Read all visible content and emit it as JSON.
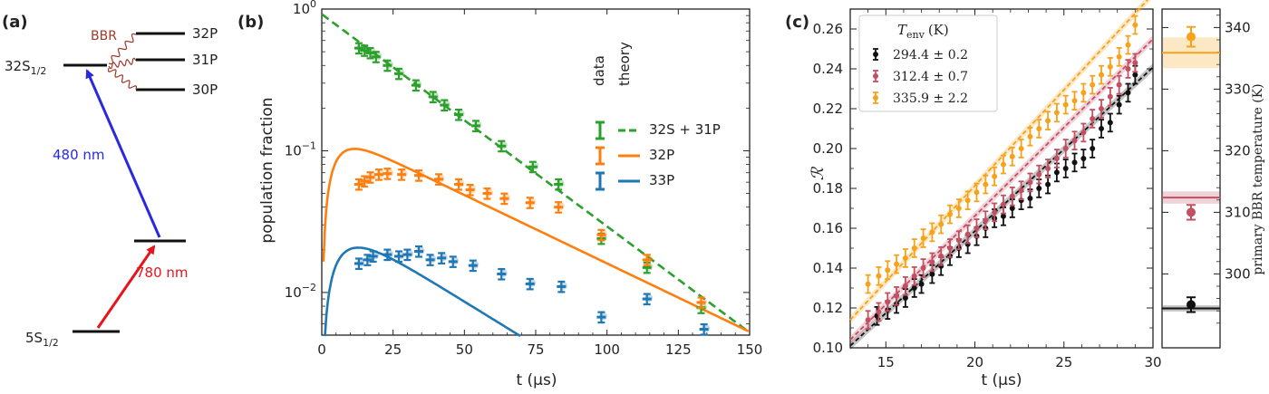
{
  "panel_a": {
    "label": "(a)",
    "states": {
      "ground": {
        "name": "5S",
        "sub": "1/2"
      },
      "intermediate": {
        "name": "",
        "sub": ""
      },
      "rydberg": {
        "name": "32S",
        "sub": "1/2"
      },
      "p32": "32P",
      "p31": "31P",
      "p30": "30P"
    },
    "bbr_label": "BBR",
    "laser_780": "780 nm",
    "laser_480": "480 nm",
    "colors": {
      "red": "#e8141c",
      "blue": "#2929e0",
      "bbr": "#9c3b2c"
    }
  },
  "panel_b": {
    "label": "(b)",
    "legend": {
      "col_data": "data",
      "col_theory": "theory"
    },
    "colors": {
      "green": "#2ca02c",
      "orange": "#ff7f0e",
      "blue": "#1f77b4"
    }
  },
  "panel_c": {
    "label": "(c)",
    "legend_title": "T",
    "legend_title_sub": "env",
    "legend_title_unit": "(K)",
    "colors": {
      "black": "#111111",
      "red": "#c44e62",
      "orange": "#f7a21c"
    }
  },
  "chart_data": [
    {
      "type": "line",
      "title": "",
      "xlabel": "t (µs)",
      "ylabel": "population fraction",
      "xlim": [
        0,
        150
      ],
      "ylim": [
        0.005,
        1
      ],
      "yscale": "log",
      "xticks": [
        "0",
        "25",
        "50",
        "75",
        "100",
        "125",
        "150"
      ],
      "yticks": [
        "10⁻²",
        "10⁻¹",
        "10⁰"
      ],
      "series": [
        {
          "name": "32S + 31P",
          "color": "green",
          "x": [
            13,
            15,
            17,
            19,
            23,
            27,
            33,
            39,
            43,
            48,
            54,
            63,
            74,
            83,
            98,
            114,
            133
          ],
          "y": [
            0.53,
            0.51,
            0.49,
            0.46,
            0.4,
            0.35,
            0.29,
            0.24,
            0.21,
            0.18,
            0.15,
            0.108,
            0.077,
            0.058,
            0.024,
            0.015,
            0.0078
          ]
        },
        {
          "name": "32P",
          "color": "orange",
          "x": [
            13,
            15,
            17,
            20,
            23,
            28,
            34,
            41,
            48,
            52,
            58,
            64,
            73,
            83,
            98,
            114,
            133
          ],
          "y": [
            0.058,
            0.061,
            0.065,
            0.068,
            0.069,
            0.068,
            0.067,
            0.063,
            0.058,
            0.053,
            0.05,
            0.046,
            0.043,
            0.04,
            0.0255,
            0.017,
            0.0085
          ]
        },
        {
          "name": "33P",
          "color": "blue",
          "x": [
            13,
            16,
            18,
            23,
            27,
            30,
            34,
            38,
            42,
            46,
            53,
            63,
            73,
            84,
            98,
            114,
            134
          ],
          "y": [
            0.016,
            0.017,
            0.018,
            0.0185,
            0.018,
            0.0185,
            0.0195,
            0.017,
            0.0175,
            0.0165,
            0.0155,
            0.0135,
            0.0115,
            0.011,
            0.0067,
            0.009,
            0.0055
          ]
        }
      ],
      "theory": {
        "32S + 31P": "0.92*exp(-t/29)",
        "32P": "0.148*(exp(-t/45)-exp(-t/4.5))",
        "33P": "0.036*(exp(-t/35)-exp(-t/6))"
      },
      "legend": [
        "32S + 31P",
        "32P",
        "33P"
      ]
    },
    {
      "type": "scatter",
      "title": "",
      "xlabel": "t (µs)",
      "ylabel": "ℛ",
      "xlim": [
        13,
        30
      ],
      "ylim": [
        0.1,
        0.27
      ],
      "xticks": [
        "15",
        "20",
        "25",
        "30"
      ],
      "yticks": [
        "0.10",
        "0.12",
        "0.14",
        "0.16",
        "0.18",
        "0.20",
        "0.22",
        "0.24",
        "0.26"
      ],
      "series": [
        {
          "name": "294.4 ± 0.2",
          "color": "black",
          "x": [
            14.5,
            15.1,
            15.6,
            16.1,
            16.6,
            17.0,
            17.6,
            18.1,
            18.6,
            19.1,
            19.6,
            20.1,
            20.6,
            21.1,
            21.6,
            22.1,
            22.6,
            23.1,
            23.6,
            24.1,
            24.6,
            25.1,
            25.6,
            26.1,
            26.6,
            27.1,
            27.6,
            28.1,
            28.6,
            29.0
          ],
          "y": [
            0.116,
            0.119,
            0.122,
            0.125,
            0.13,
            0.132,
            0.137,
            0.141,
            0.146,
            0.15,
            0.152,
            0.156,
            0.16,
            0.165,
            0.166,
            0.17,
            0.174,
            0.175,
            0.18,
            0.182,
            0.188,
            0.19,
            0.193,
            0.195,
            0.2,
            0.21,
            0.213,
            0.222,
            0.228,
            0.237
          ]
        },
        {
          "name": "312.4 ± 0.7",
          "color": "red",
          "x": [
            14.0,
            14.6,
            15.1,
            15.6,
            16.1,
            16.6,
            17.1,
            17.6,
            18.1,
            18.6,
            19.1,
            19.6,
            20.1,
            20.6,
            21.1,
            21.6,
            22.1,
            22.6,
            23.1,
            23.6,
            24.1,
            24.6,
            25.1,
            25.6,
            26.1,
            26.6,
            27.1,
            27.6,
            28.1,
            28.6,
            29.0
          ],
          "y": [
            0.114,
            0.118,
            0.123,
            0.126,
            0.131,
            0.136,
            0.14,
            0.143,
            0.146,
            0.15,
            0.154,
            0.157,
            0.16,
            0.164,
            0.168,
            0.172,
            0.176,
            0.179,
            0.183,
            0.187,
            0.19,
            0.195,
            0.2,
            0.204,
            0.208,
            0.215,
            0.22,
            0.226,
            0.232,
            0.24,
            0.243
          ]
        },
        {
          "name": "335.9 ± 2.2",
          "color": "orange",
          "x": [
            14.0,
            14.6,
            15.1,
            15.6,
            16.1,
            16.6,
            17.1,
            17.6,
            18.1,
            18.6,
            19.1,
            19.6,
            20.1,
            20.6,
            21.1,
            21.6,
            22.1,
            22.6,
            23.1,
            23.6,
            24.1,
            24.6,
            25.1,
            25.6,
            26.1,
            26.6,
            27.1,
            27.6,
            28.1,
            28.6,
            29.0
          ],
          "y": [
            0.132,
            0.136,
            0.139,
            0.142,
            0.145,
            0.15,
            0.155,
            0.158,
            0.162,
            0.167,
            0.17,
            0.174,
            0.178,
            0.182,
            0.186,
            0.192,
            0.196,
            0.2,
            0.206,
            0.21,
            0.214,
            0.218,
            0.222,
            0.224,
            0.228,
            0.232,
            0.237,
            0.241,
            0.246,
            0.252,
            0.262
          ]
        }
      ],
      "fits": [
        {
          "color": "black",
          "y_at_13": 0.101,
          "slope": 0.00822
        },
        {
          "color": "red",
          "y_at_13": 0.104,
          "slope": 0.00888
        },
        {
          "color": "orange",
          "y_at_13": 0.114,
          "slope": 0.00962
        }
      ],
      "legend": [
        "294.4 ± 0.2",
        "312.4 ± 0.7",
        "335.9 ± 2.2"
      ]
    },
    {
      "type": "scatter",
      "title": "",
      "xlabel": "",
      "ylabel": "primary BBR temperature (K)",
      "ylim": [
        288,
        343
      ],
      "yticks": [
        "300",
        "310",
        "320",
        "330",
        "340"
      ],
      "points": [
        {
          "color": "black",
          "y": 295.0,
          "err": 1.2,
          "band": 294.4,
          "band_err": 0.2
        },
        {
          "color": "red",
          "y": 310.0,
          "err": 1.2,
          "band": 312.4,
          "band_err": 0.7
        },
        {
          "color": "orange",
          "y": 338.5,
          "err": 1.6,
          "band": 335.9,
          "band_err": 2.2
        }
      ]
    }
  ]
}
